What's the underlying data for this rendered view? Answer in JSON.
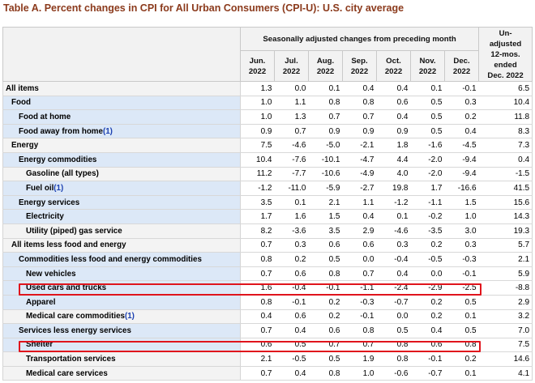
{
  "title": "Table A. Percent changes in CPI for All Urban Consumers (CPI-U): U.S. city average",
  "header": {
    "group": "Seasonally adjusted changes from preceding month",
    "months": [
      [
        "Jun.",
        "2022"
      ],
      [
        "Jul.",
        "2022"
      ],
      [
        "Aug.",
        "2022"
      ],
      [
        "Sep.",
        "2022"
      ],
      [
        "Oct.",
        "2022"
      ],
      [
        "Nov.",
        "2022"
      ],
      [
        "Dec.",
        "2022"
      ]
    ],
    "unadjusted": [
      "Un-",
      "adjusted",
      "12-mos.",
      "ended",
      "Dec. 2022"
    ]
  },
  "rows": [
    {
      "label": "All items",
      "indent": 0,
      "fn": "",
      "values": [
        "1.3",
        "0.0",
        "0.1",
        "0.4",
        "0.4",
        "0.1",
        "-0.1",
        "6.5"
      ],
      "shade": "gray"
    },
    {
      "label": "Food",
      "indent": 1,
      "fn": "",
      "values": [
        "1.0",
        "1.1",
        "0.8",
        "0.8",
        "0.6",
        "0.5",
        "0.3",
        "10.4"
      ],
      "shade": "blue"
    },
    {
      "label": "Food at home",
      "indent": 2,
      "fn": "",
      "values": [
        "1.0",
        "1.3",
        "0.7",
        "0.7",
        "0.4",
        "0.5",
        "0.2",
        "11.8"
      ],
      "shade": "blue"
    },
    {
      "label": "Food away from home",
      "indent": 2,
      "fn": "(1)",
      "values": [
        "0.9",
        "0.7",
        "0.9",
        "0.9",
        "0.9",
        "0.5",
        "0.4",
        "8.3"
      ],
      "shade": "blue"
    },
    {
      "label": "Energy",
      "indent": 1,
      "fn": "",
      "values": [
        "7.5",
        "-4.6",
        "-5.0",
        "-2.1",
        "1.8",
        "-1.6",
        "-4.5",
        "7.3"
      ],
      "shade": "gray"
    },
    {
      "label": "Energy commodities",
      "indent": 2,
      "fn": "",
      "values": [
        "10.4",
        "-7.6",
        "-10.1",
        "-4.7",
        "4.4",
        "-2.0",
        "-9.4",
        "0.4"
      ],
      "shade": "blue"
    },
    {
      "label": "Gasoline (all types)",
      "indent": 3,
      "fn": "",
      "values": [
        "11.2",
        "-7.7",
        "-10.6",
        "-4.9",
        "4.0",
        "-2.0",
        "-9.4",
        "-1.5"
      ],
      "shade": "gray"
    },
    {
      "label": "Fuel oil",
      "indent": 3,
      "fn": "(1)",
      "values": [
        "-1.2",
        "-11.0",
        "-5.9",
        "-2.7",
        "19.8",
        "1.7",
        "-16.6",
        "41.5"
      ],
      "shade": "blue"
    },
    {
      "label": "Energy services",
      "indent": 2,
      "fn": "",
      "values": [
        "3.5",
        "0.1",
        "2.1",
        "1.1",
        "-1.2",
        "-1.1",
        "1.5",
        "15.6"
      ],
      "shade": "blue"
    },
    {
      "label": "Electricity",
      "indent": 3,
      "fn": "",
      "values": [
        "1.7",
        "1.6",
        "1.5",
        "0.4",
        "0.1",
        "-0.2",
        "1.0",
        "14.3"
      ],
      "shade": "blue"
    },
    {
      "label": "Utility (piped) gas service",
      "indent": 3,
      "fn": "",
      "values": [
        "8.2",
        "-3.6",
        "3.5",
        "2.9",
        "-4.6",
        "-3.5",
        "3.0",
        "19.3"
      ],
      "shade": "gray"
    },
    {
      "label": "All items less food and energy",
      "indent": 1,
      "fn": "",
      "values": [
        "0.7",
        "0.3",
        "0.6",
        "0.6",
        "0.3",
        "0.2",
        "0.3",
        "5.7"
      ],
      "shade": "gray"
    },
    {
      "label": "Commodities less food and energy commodities",
      "indent": 2,
      "fn": "",
      "values": [
        "0.8",
        "0.2",
        "0.5",
        "0.0",
        "-0.4",
        "-0.5",
        "-0.3",
        "2.1"
      ],
      "shade": "blue"
    },
    {
      "label": "New vehicles",
      "indent": 3,
      "fn": "",
      "values": [
        "0.7",
        "0.6",
        "0.8",
        "0.7",
        "0.4",
        "0.0",
        "-0.1",
        "5.9"
      ],
      "shade": "blue"
    },
    {
      "label": "Used cars and trucks",
      "indent": 3,
      "fn": "",
      "values": [
        "1.6",
        "-0.4",
        "-0.1",
        "-1.1",
        "-2.4",
        "-2.9",
        "-2.5",
        "-8.8"
      ],
      "shade": "blue"
    },
    {
      "label": "Apparel",
      "indent": 3,
      "fn": "",
      "values": [
        "0.8",
        "-0.1",
        "0.2",
        "-0.3",
        "-0.7",
        "0.2",
        "0.5",
        "2.9"
      ],
      "shade": "blue"
    },
    {
      "label": "Medical care commodities",
      "indent": 3,
      "fn": "(1)",
      "values": [
        "0.4",
        "0.6",
        "0.2",
        "-0.1",
        "0.0",
        "0.2",
        "0.1",
        "3.2"
      ],
      "shade": "gray"
    },
    {
      "label": "Services less energy services",
      "indent": 2,
      "fn": "",
      "values": [
        "0.7",
        "0.4",
        "0.6",
        "0.8",
        "0.5",
        "0.4",
        "0.5",
        "7.0"
      ],
      "shade": "blue"
    },
    {
      "label": "Shelter",
      "indent": 3,
      "fn": "",
      "values": [
        "0.6",
        "0.5",
        "0.7",
        "0.7",
        "0.8",
        "0.6",
        "0.8",
        "7.5"
      ],
      "shade": "blue"
    },
    {
      "label": "Transportation services",
      "indent": 3,
      "fn": "",
      "values": [
        "2.1",
        "-0.5",
        "0.5",
        "1.9",
        "0.8",
        "-0.1",
        "0.2",
        "14.6"
      ],
      "shade": "gray"
    },
    {
      "label": "Medical care services",
      "indent": 3,
      "fn": "",
      "values": [
        "0.7",
        "0.4",
        "0.8",
        "1.0",
        "-0.6",
        "-0.7",
        "0.1",
        "4.1"
      ],
      "shade": "gray"
    }
  ],
  "highlight_color": "#e0141c",
  "highlighted_rows": [
    "Used cars and trucks",
    "Shelter"
  ]
}
